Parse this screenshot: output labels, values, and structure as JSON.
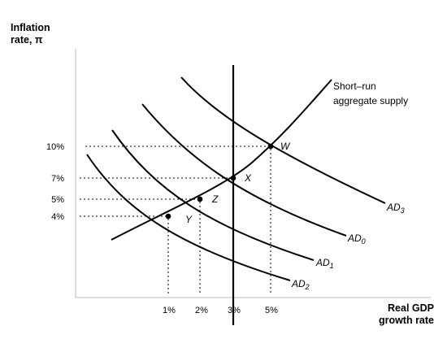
{
  "y_axis_title": [
    "Inflation",
    "rate, π"
  ],
  "x_axis_title": [
    "Real GDP",
    "growth rate"
  ],
  "y_ticks": [
    {
      "label": "10%",
      "value": 10
    },
    {
      "label": "7%",
      "value": 7
    },
    {
      "label": "5%",
      "value": 5
    },
    {
      "label": "4%",
      "value": 4
    }
  ],
  "x_ticks": [
    {
      "label": "1%",
      "value": 1
    },
    {
      "label": "2%",
      "value": 2
    },
    {
      "label": "3%",
      "value": 3
    },
    {
      "label": "5%",
      "value": 5
    }
  ],
  "points": [
    {
      "name": "W",
      "x": 5,
      "y": 10
    },
    {
      "name": "X",
      "x": 3,
      "y": 7
    },
    {
      "name": "Z",
      "x": 2,
      "y": 5
    },
    {
      "name": "Y",
      "x": 1,
      "y": 4
    }
  ],
  "curves": {
    "sras_label": [
      "Short–run",
      "aggregate supply"
    ],
    "ad_labels": [
      {
        "id": "AD3",
        "base": "AD",
        "sub": "3"
      },
      {
        "id": "AD0",
        "base": "AD",
        "sub": "0"
      },
      {
        "id": "AD1",
        "base": "AD",
        "sub": "1"
      },
      {
        "id": "AD2",
        "base": "AD",
        "sub": "2"
      }
    ]
  }
}
